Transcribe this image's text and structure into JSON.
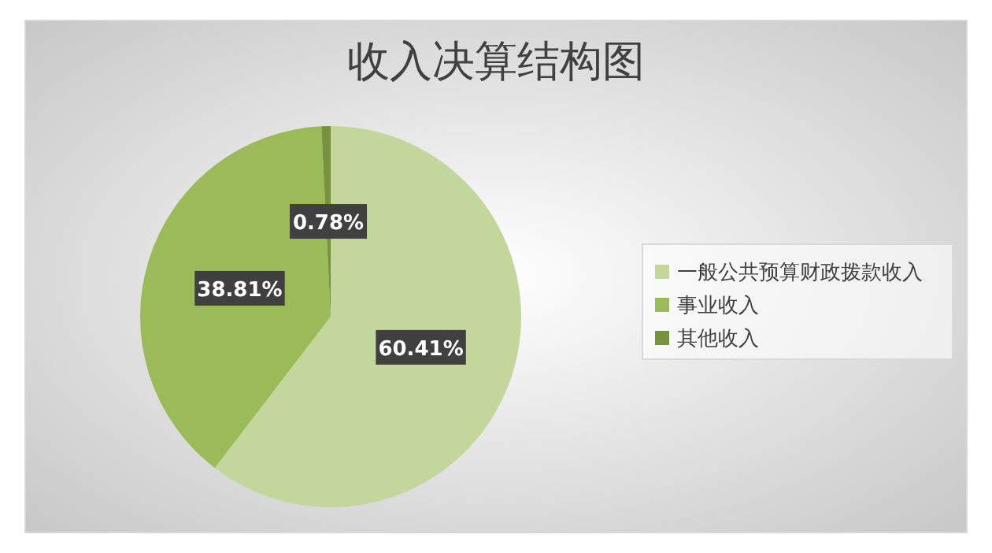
{
  "chart_data": {
    "type": "pie",
    "title": "收入决算结构图",
    "categories": [
      "一般公共预算财政拨款收入",
      "事业收入",
      "其他收入"
    ],
    "values": [
      60.41,
      38.81,
      0.78
    ],
    "colors": [
      "#c3d69b",
      "#9bbb59",
      "#76923c"
    ],
    "value_labels": [
      "60.41%",
      "38.81%",
      "0.78%"
    ],
    "legend": "right"
  }
}
